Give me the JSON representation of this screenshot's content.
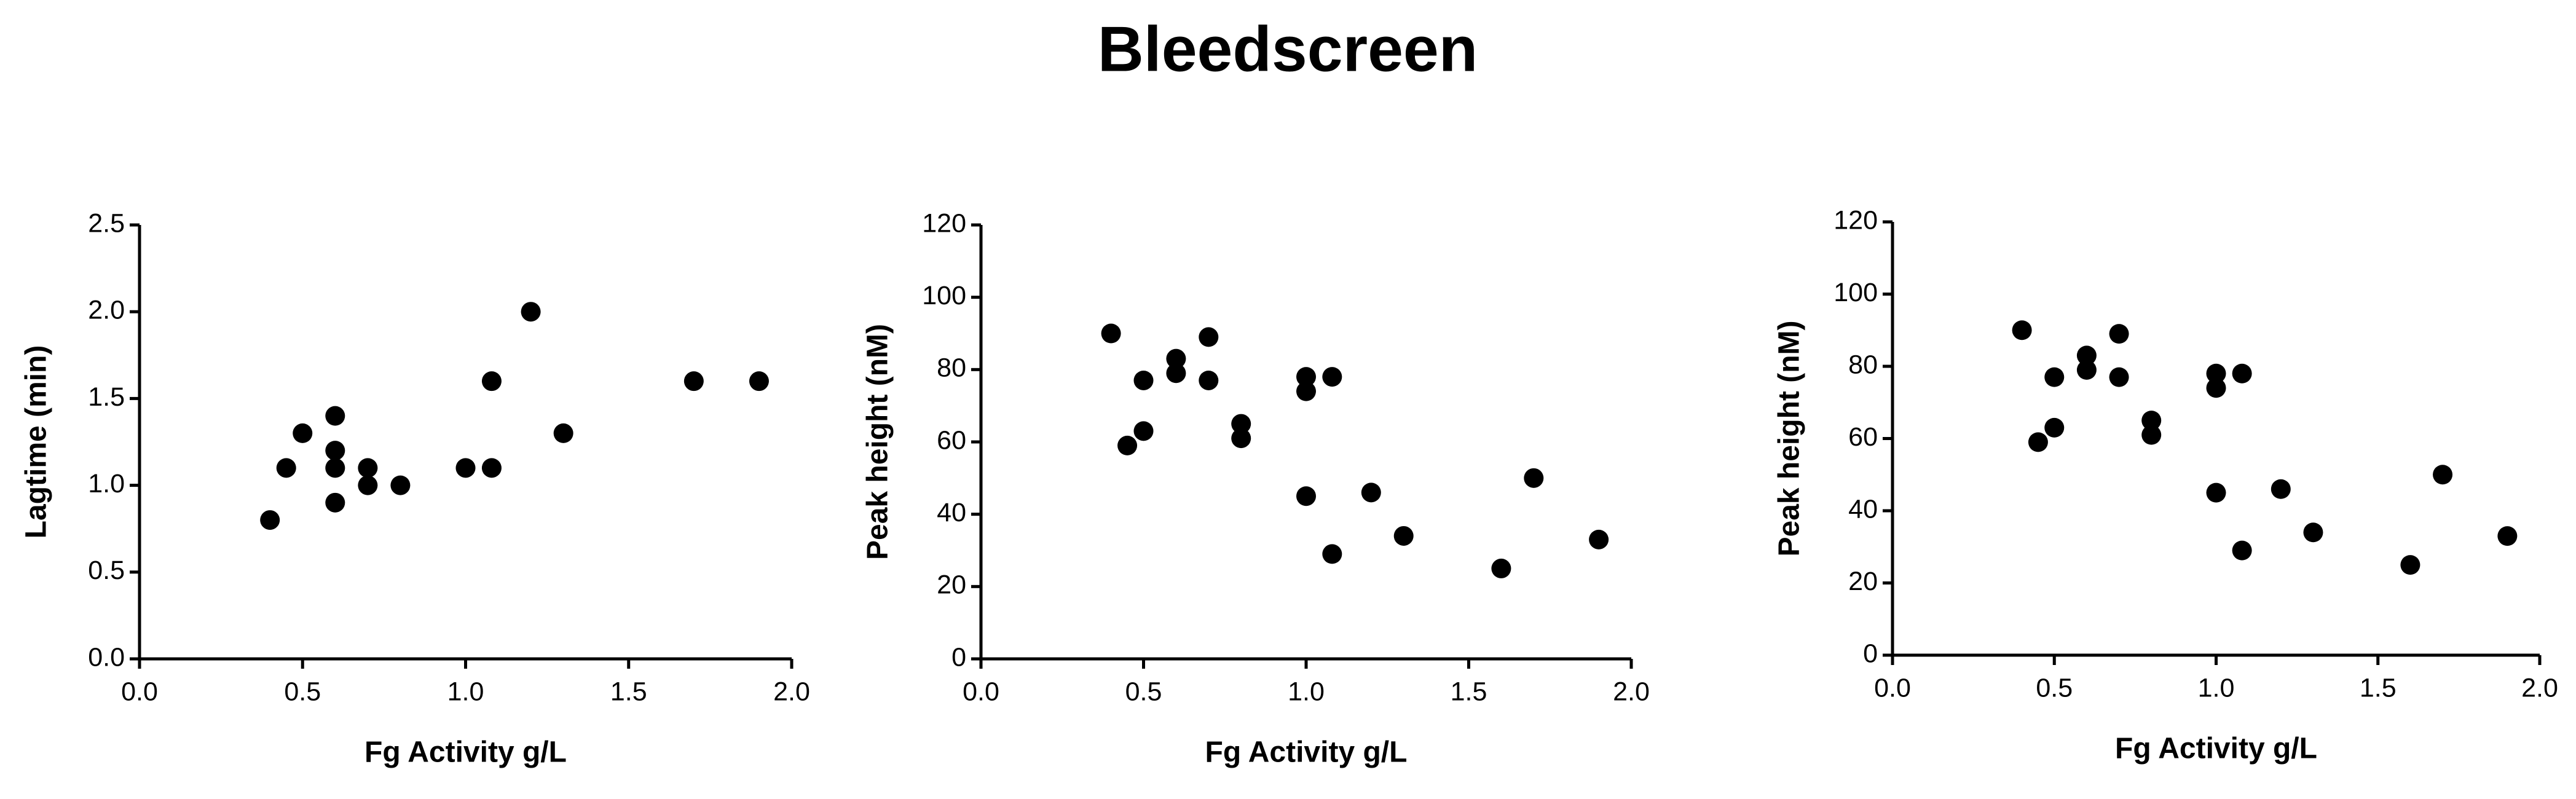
{
  "title": "Bleedscreen",
  "chart_data": [
    {
      "type": "scatter",
      "x_label": "Fg Activity g/L",
      "y_label": "Lagtime (min)",
      "color": "#000000",
      "x": [
        0.4,
        0.45,
        0.5,
        0.6,
        0.6,
        0.6,
        0.6,
        0.7,
        0.7,
        0.8,
        1.0,
        1.08,
        1.08,
        1.2,
        1.3,
        1.7,
        1.9
      ],
      "values": [
        0.8,
        1.1,
        1.3,
        1.4,
        1.2,
        1.1,
        0.9,
        1.1,
        1.0,
        1.0,
        1.1,
        1.6,
        1.1,
        2.0,
        1.3,
        1.6,
        1.6
      ],
      "xlim": [
        0,
        2
      ],
      "xticks": [
        {
          "value": 0,
          "label": "0.0"
        },
        {
          "value": 0.5,
          "label": "0.5"
        },
        {
          "value": 1,
          "label": "1.0"
        },
        {
          "value": 1.5,
          "label": "1.5"
        },
        {
          "value": 2,
          "label": "2.0"
        }
      ],
      "ylim": [
        0,
        2.5
      ],
      "yticks": [
        {
          "value": 0,
          "label": "0.0"
        },
        {
          "value": 0.5,
          "label": "0.5"
        },
        {
          "value": 1,
          "label": "1.0"
        },
        {
          "value": 1.5,
          "label": "1.5"
        },
        {
          "value": 2,
          "label": "2.0"
        },
        2.5
      ]
    },
    {
      "type": "scatter",
      "x_label": "Fg Activity g/L",
      "y_label": "Peak height (nM)",
      "color": "#000000",
      "x": [
        0.4,
        0.45,
        0.5,
        0.5,
        0.6,
        0.6,
        0.7,
        0.7,
        0.8,
        0.8,
        1.0,
        1.0,
        1.0,
        1.08,
        1.08,
        1.2,
        1.3,
        1.6,
        1.7,
        1.9
      ],
      "values": [
        90,
        59,
        77,
        63,
        83,
        79,
        89,
        77,
        65,
        61,
        78,
        74,
        45,
        78,
        29,
        46,
        34,
        25,
        50,
        33
      ],
      "xlim": [
        0,
        2
      ],
      "xticks": [
        {
          "value": 0,
          "label": "0.0"
        },
        {
          "value": 0.5,
          "label": "0.5"
        },
        {
          "value": 1,
          "label": "1.0"
        },
        {
          "value": 1.5,
          "label": "1.5"
        },
        {
          "value": 2,
          "label": "2.0"
        }
      ],
      "ylim": [
        0,
        120
      ],
      "yticks": [
        0,
        20,
        40,
        60,
        80,
        100,
        120
      ]
    },
    {
      "type": "scatter",
      "x_label": "Fg Activity g/L",
      "y_label": "Peak height (nM)",
      "color": "#000000",
      "x": [
        0.4,
        0.45,
        0.5,
        0.5,
        0.6,
        0.6,
        0.7,
        0.7,
        0.8,
        0.8,
        1.0,
        1.0,
        1.0,
        1.08,
        1.08,
        1.2,
        1.3,
        1.6,
        1.7,
        1.9
      ],
      "values": [
        90,
        59,
        77,
        63,
        83,
        79,
        89,
        77,
        65,
        61,
        78,
        74,
        45,
        78,
        29,
        46,
        34,
        25,
        50,
        33
      ],
      "xlim": [
        0,
        2
      ],
      "xticks": [
        {
          "value": 0,
          "label": "0.0"
        },
        {
          "value": 0.5,
          "label": "0.5"
        },
        {
          "value": 1,
          "label": "1.0"
        },
        {
          "value": 1.5,
          "label": "1.5"
        },
        {
          "value": 2,
          "label": "2.0"
        }
      ],
      "ylim": [
        0,
        120
      ],
      "yticks": [
        0,
        20,
        40,
        60,
        80,
        100,
        120
      ]
    }
  ]
}
